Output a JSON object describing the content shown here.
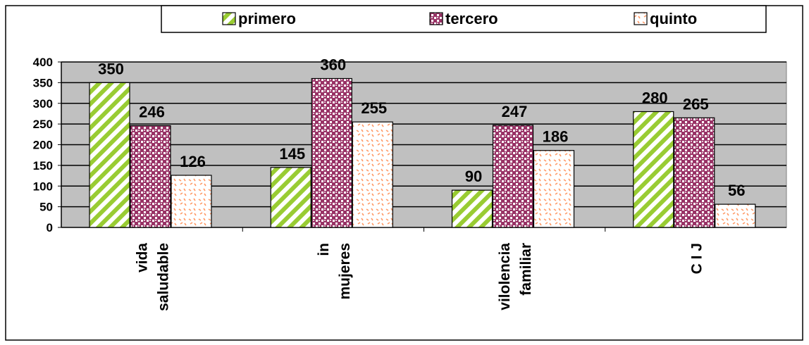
{
  "chart_data": {
    "type": "bar",
    "title": "",
    "xlabel": "",
    "ylabel": "",
    "categories": [
      [
        "vida",
        "saludable"
      ],
      [
        "in",
        "mujeres"
      ],
      [
        "vilolencia",
        "familiar"
      ],
      [
        "C I J"
      ]
    ],
    "series": [
      {
        "name": "primero",
        "values": [
          350,
          145,
          90,
          280
        ],
        "color": "#99cc33",
        "pattern": "diagonal-stripes"
      },
      {
        "name": "tercero",
        "values": [
          246,
          360,
          247,
          265
        ],
        "color": "#993366",
        "pattern": "checker"
      },
      {
        "name": "quinto",
        "values": [
          126,
          255,
          186,
          56
        ],
        "color": "#ff9966",
        "pattern": "dots"
      }
    ],
    "ylim": [
      0,
      400
    ],
    "yticks": [
      0,
      50,
      100,
      150,
      200,
      250,
      300,
      350,
      400
    ],
    "grid": true,
    "legend_position": "top",
    "plot_background": "#c0c0c0",
    "data_labels": true
  }
}
